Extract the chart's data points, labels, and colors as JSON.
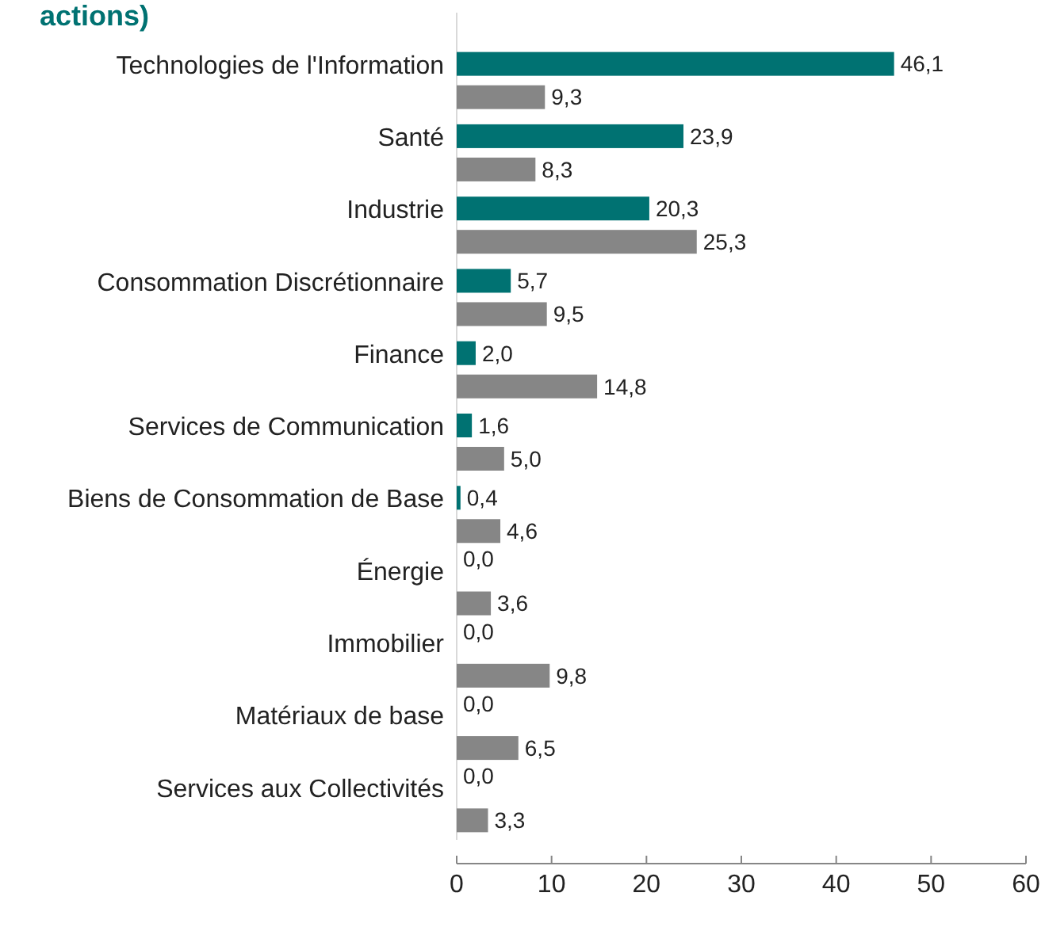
{
  "chart_data": {
    "type": "bar",
    "orientation": "horizontal",
    "title": "actions)",
    "categories": [
      "Technologies de l'Information",
      "Santé",
      "Industrie",
      "Consommation Discrétionnaire",
      "Finance",
      "Services de Communication",
      "Biens de Consommation de Base",
      "Énergie",
      "Immobilier",
      "Matériaux de base",
      "Services aux Collectivités"
    ],
    "series": [
      {
        "color": "#007272",
        "values": [
          46.1,
          23.9,
          20.3,
          5.7,
          2.0,
          1.6,
          0.4,
          0,
          0,
          0,
          0
        ],
        "value_labels": [
          "46,1",
          "23,9",
          "20,3",
          "5,7",
          "2,0",
          "1,6",
          "0,4",
          "0,0",
          "0,0",
          "0,0",
          "0,0"
        ]
      },
      {
        "color": "#868686",
        "values": [
          9.3,
          8.3,
          25.3,
          9.5,
          14.8,
          5.0,
          4.6,
          3.6,
          9.8,
          6.5,
          3.3
        ],
        "value_labels": [
          "9,3",
          "8,3",
          "25,3",
          "9,5",
          "14,8",
          "5,0",
          "4,6",
          "3,6",
          "9,8",
          "6,5",
          "3,3"
        ]
      }
    ],
    "xlim": [
      0,
      60
    ],
    "xticks": [
      0,
      10,
      20,
      30,
      40,
      50,
      60
    ]
  }
}
